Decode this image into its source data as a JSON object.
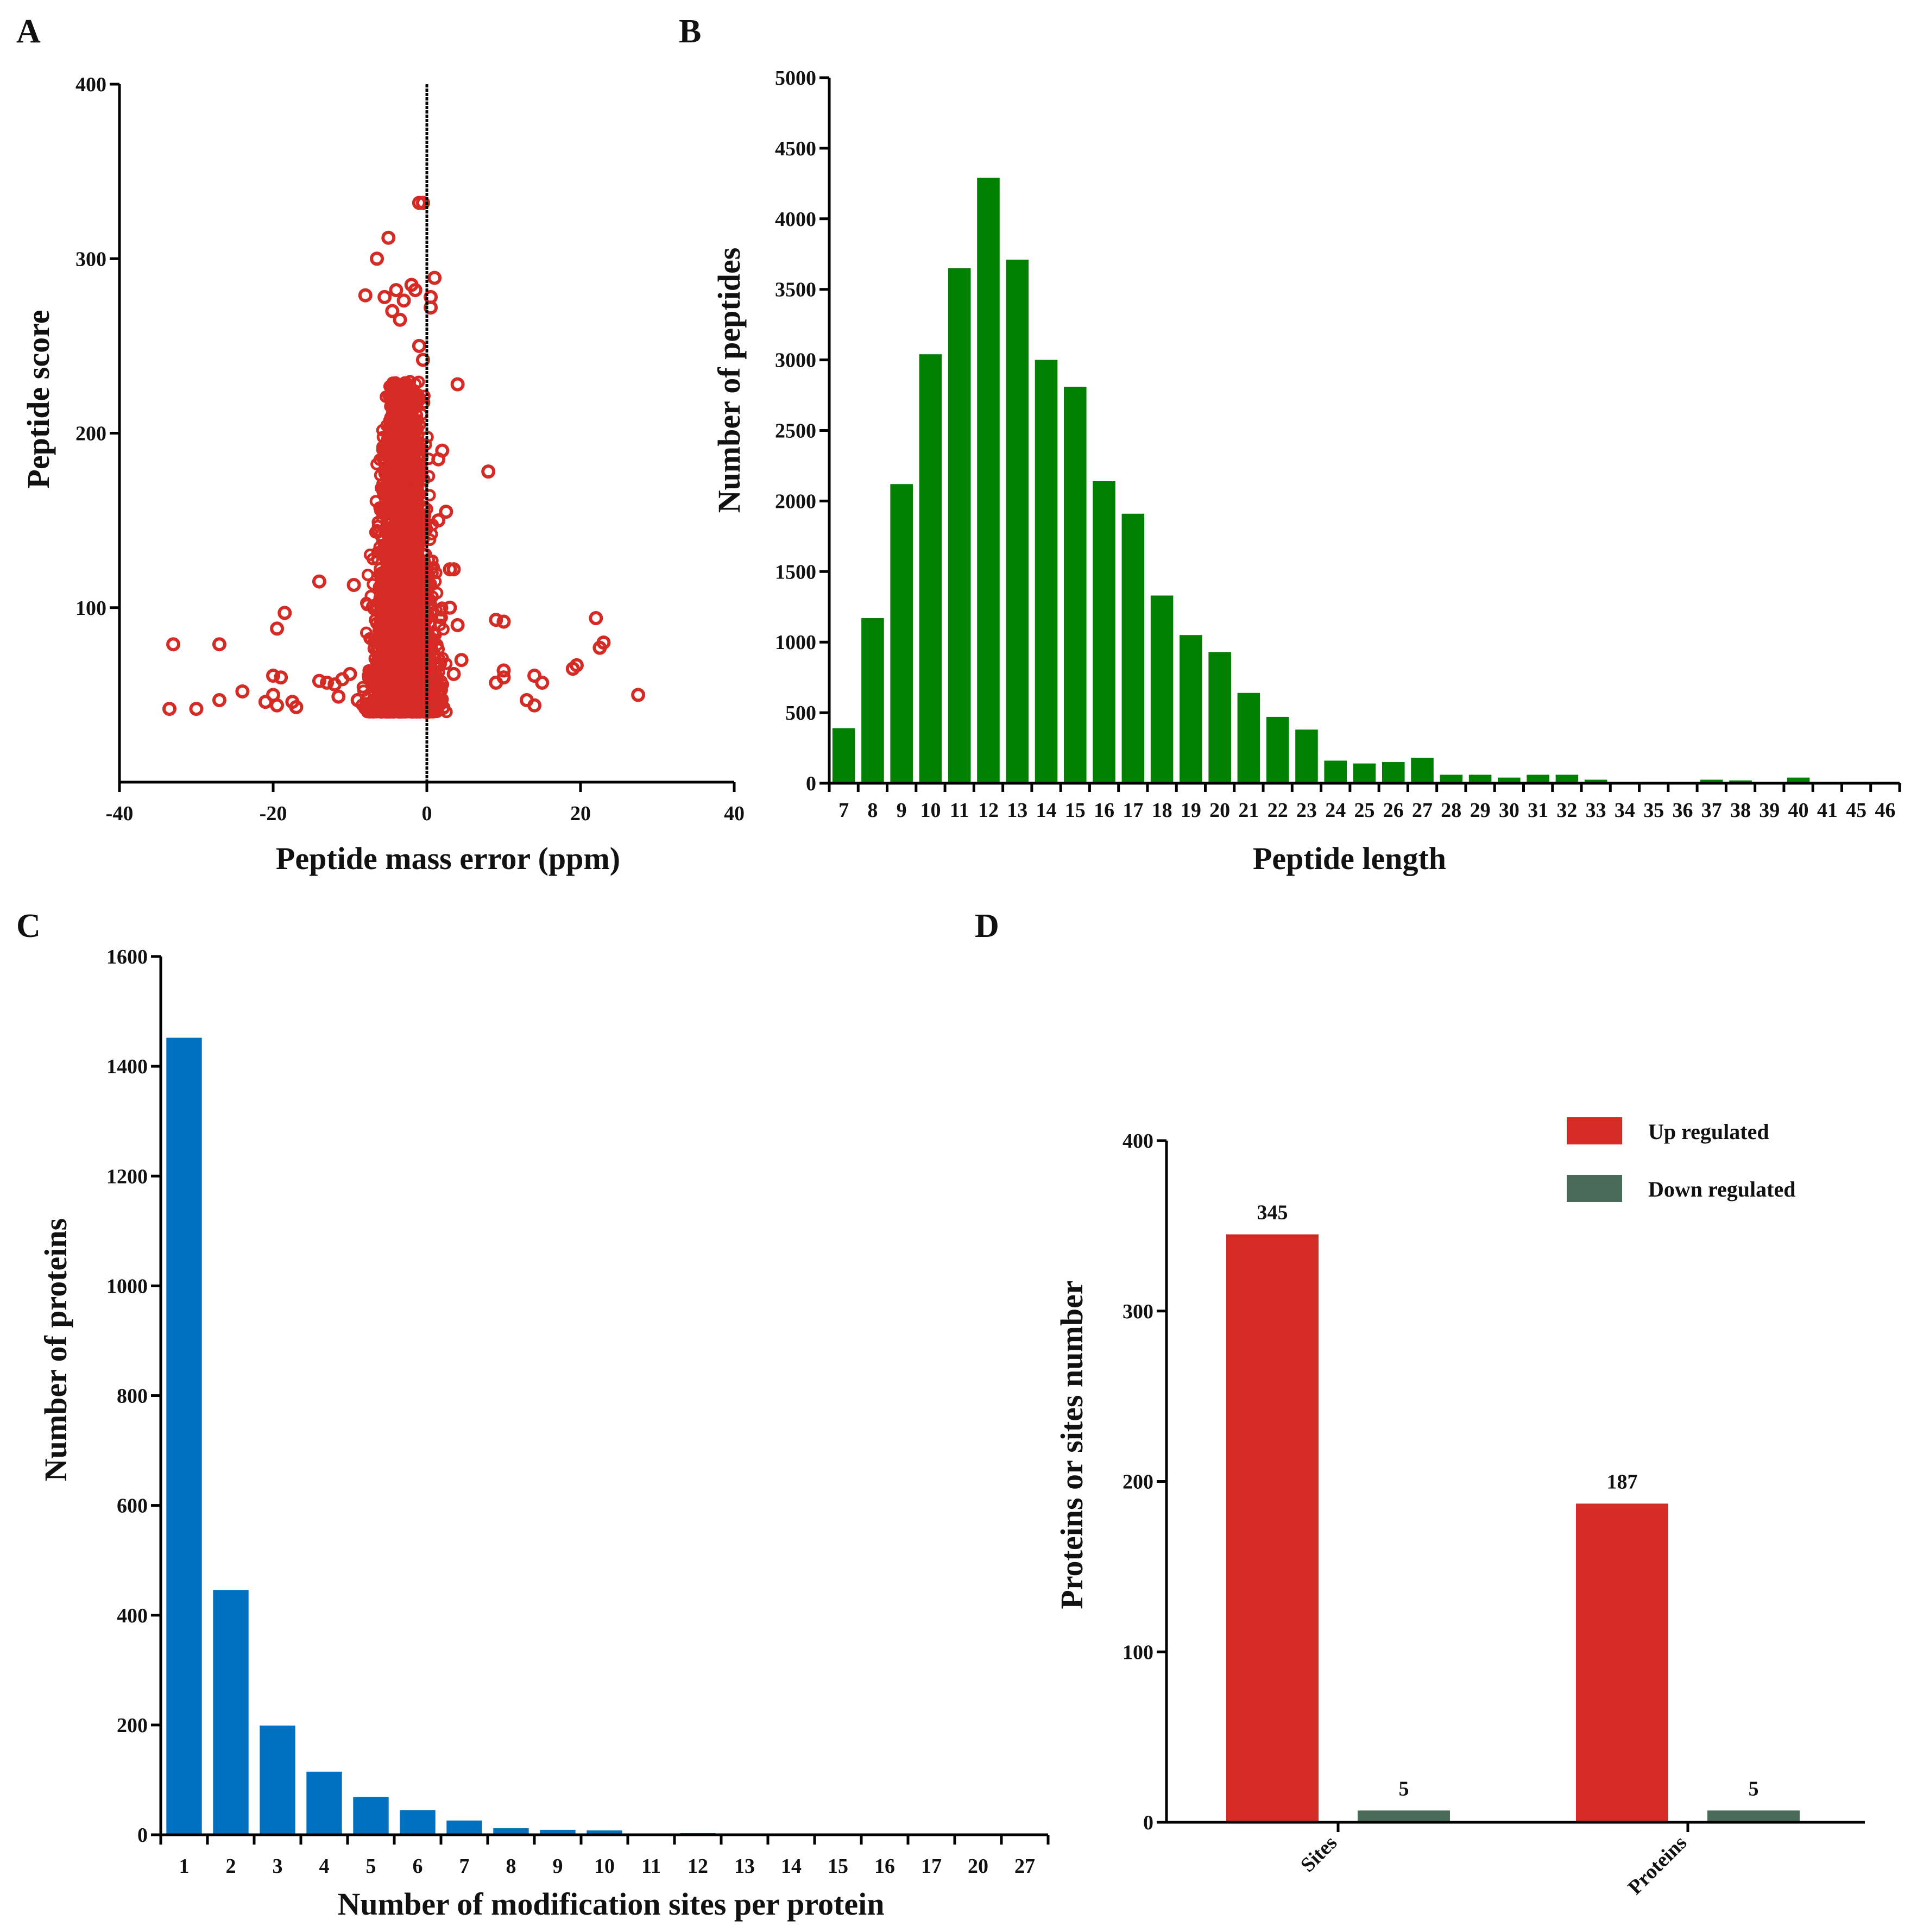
{
  "chart_data": [
    {
      "panel": "A",
      "type": "scatter",
      "xlabel": "Peptide mass error (ppm)",
      "ylabel": "Peptide score",
      "xlim": [
        -40,
        40
      ],
      "ylim": [
        0,
        400
      ],
      "xticks": [
        -40,
        -20,
        0,
        20,
        40
      ],
      "yticks": [
        100,
        200,
        300,
        400
      ],
      "tick_labels_x": [
        "-40",
        "-20",
        "0",
        "20",
        "40"
      ],
      "tick_labels_y": [
        "100",
        "200",
        "300",
        "400"
      ],
      "reference_line_x": 0,
      "marker_color": "#d62a24",
      "core_cloud": {
        "x_range": [
          -8.5,
          3
        ],
        "y_range": [
          40,
          230
        ],
        "x_center": -3
      },
      "points": [
        [
          -33.5,
          42
        ],
        [
          -33,
          79
        ],
        [
          -30,
          42
        ],
        [
          -27,
          47
        ],
        [
          -27,
          79
        ],
        [
          -24,
          52
        ],
        [
          -21,
          46
        ],
        [
          -20,
          50
        ],
        [
          -20,
          61
        ],
        [
          -19.5,
          44
        ],
        [
          -19.5,
          88
        ],
        [
          -19,
          60
        ],
        [
          -18.5,
          97
        ],
        [
          -17.5,
          46
        ],
        [
          -17,
          43
        ],
        [
          -14,
          115
        ],
        [
          -14,
          58
        ],
        [
          -13,
          57
        ],
        [
          -12,
          56
        ],
        [
          -11.5,
          49
        ],
        [
          -11,
          59
        ],
        [
          -10,
          62
        ],
        [
          -9.5,
          113
        ],
        [
          -9,
          47
        ],
        [
          -8,
          279
        ],
        [
          -6.5,
          300
        ],
        [
          -5,
          312
        ],
        [
          -5.5,
          278
        ],
        [
          -4.5,
          270
        ],
        [
          -4,
          282
        ],
        [
          -3.5,
          265
        ],
        [
          -3,
          276
        ],
        [
          -2,
          285
        ],
        [
          -1,
          332
        ],
        [
          -0.5,
          332
        ],
        [
          -1.5,
          282
        ],
        [
          0.5,
          272
        ],
        [
          0.5,
          278
        ],
        [
          1,
          289
        ],
        [
          -1,
          250
        ],
        [
          -0.5,
          242
        ],
        [
          2,
          190
        ],
        [
          1.5,
          185
        ],
        [
          1.5,
          150
        ],
        [
          2.5,
          155
        ],
        [
          3,
          122
        ],
        [
          3.5,
          122
        ],
        [
          4,
          228
        ],
        [
          8,
          178
        ],
        [
          3,
          100
        ],
        [
          4,
          90
        ],
        [
          3.5,
          62
        ],
        [
          4.5,
          70
        ],
        [
          9,
          93
        ],
        [
          10,
          92
        ],
        [
          9,
          57
        ],
        [
          10,
          60
        ],
        [
          10,
          64
        ],
        [
          13,
          47
        ],
        [
          14,
          44
        ],
        [
          14,
          61
        ],
        [
          15,
          57
        ],
        [
          19,
          65
        ],
        [
          19.5,
          67
        ],
        [
          22,
          94
        ],
        [
          22.5,
          77
        ],
        [
          23,
          80
        ],
        [
          27.5,
          50
        ]
      ]
    },
    {
      "panel": "B",
      "type": "bar",
      "xlabel": "Peptide length",
      "ylabel": "Number of peptides",
      "ylim": [
        0,
        5000
      ],
      "yticks": [
        0,
        500,
        1000,
        1500,
        2000,
        2500,
        3000,
        3500,
        4000,
        4500,
        5000
      ],
      "tick_labels_y": [
        "0",
        "500",
        "1000",
        "1500",
        "2000",
        "2500",
        "3000",
        "3500",
        "4000",
        "4500",
        "5000"
      ],
      "color": "#008000",
      "categories": [
        "7",
        "8",
        "9",
        "10",
        "11",
        "12",
        "13",
        "14",
        "15",
        "16",
        "17",
        "18",
        "19",
        "20",
        "21",
        "22",
        "23",
        "24",
        "25",
        "26",
        "27",
        "28",
        "29",
        "30",
        "31",
        "32",
        "33",
        "34",
        "35",
        "36",
        "37",
        "38",
        "39",
        "40",
        "41",
        "45",
        "46"
      ],
      "values": [
        390,
        1170,
        2120,
        3040,
        3650,
        4290,
        3710,
        3000,
        2810,
        2140,
        1910,
        1330,
        1050,
        930,
        640,
        470,
        380,
        160,
        140,
        150,
        180,
        60,
        60,
        40,
        60,
        60,
        25,
        5,
        10,
        5,
        25,
        20,
        5,
        40,
        5,
        10,
        10
      ]
    },
    {
      "panel": "C",
      "type": "bar",
      "xlabel": "Number of modification sites per protein",
      "ylabel": "Number of proteins",
      "ylim": [
        0,
        1600
      ],
      "yticks": [
        0,
        200,
        400,
        600,
        800,
        1000,
        1200,
        1400,
        1600
      ],
      "tick_labels_y": [
        "0",
        "200",
        "400",
        "600",
        "800",
        "1000",
        "1200",
        "1400",
        "1600"
      ],
      "color": "#0070c0",
      "categories": [
        "1",
        "2",
        "3",
        "4",
        "5",
        "6",
        "7",
        "8",
        "9",
        "10",
        "11",
        "12",
        "13",
        "14",
        "15",
        "16",
        "17",
        "20",
        "27"
      ],
      "values": [
        1452,
        446,
        199,
        115,
        69,
        45,
        26,
        12,
        9,
        8,
        2,
        3,
        1,
        1,
        1,
        1,
        1,
        1,
        1
      ]
    },
    {
      "panel": "D",
      "type": "bar",
      "ylabel": "Proteins or sites number",
      "ylim": [
        0,
        400
      ],
      "yticks": [
        0,
        100,
        200,
        300,
        400
      ],
      "tick_labels_y": [
        "0",
        "100",
        "200",
        "300",
        "400"
      ],
      "categories": [
        "Sites",
        "Proteins"
      ],
      "legend_position": "top-right",
      "series": [
        {
          "name": "Up regulated",
          "color": "#d62a24",
          "values": [
            345,
            187
          ],
          "data_labels": [
            "345",
            "187"
          ]
        },
        {
          "name": "Down regulated",
          "color": "#4a6b5a",
          "values": [
            5,
            5
          ],
          "data_labels": [
            "5",
            "5"
          ]
        }
      ]
    }
  ]
}
